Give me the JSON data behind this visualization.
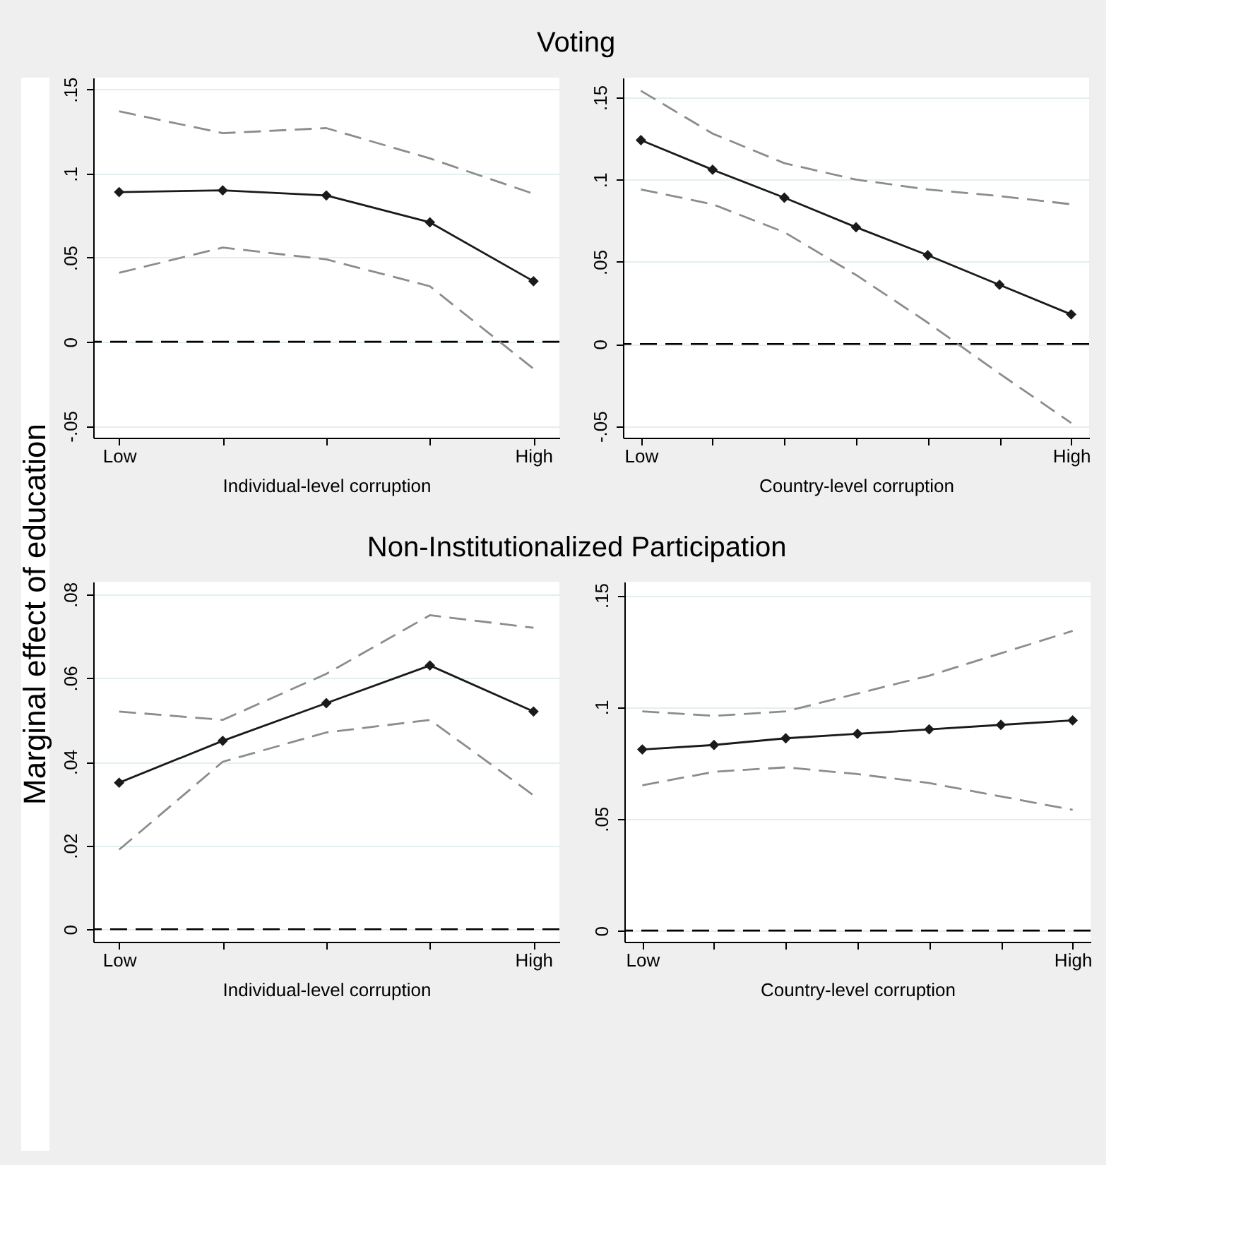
{
  "chart_data": [
    {
      "type": "line",
      "title": "Voting",
      "ylabel": "Marginal effect of education",
      "xlabel": "Individual-level corruption",
      "categories": [
        "Low",
        null,
        null,
        null,
        "High"
      ],
      "series": [
        {
          "color": "#1a1a1a",
          "marker": "diamond",
          "line_style": "solid",
          "values": [
            0.089,
            0.09,
            0.087,
            0.071,
            0.036
          ]
        },
        {
          "color": "#8c8c8c",
          "marker": "none",
          "line_style": "dashed",
          "values": [
            0.137,
            0.124,
            0.127,
            0.109,
            0.088
          ]
        },
        {
          "color": "#8c8c8c",
          "marker": "none",
          "line_style": "dashed",
          "values": [
            0.041,
            0.056,
            0.049,
            0.033,
            -0.016
          ]
        }
      ],
      "ylim": [
        -0.057,
        0.157
      ],
      "yticks": [
        {
          "value": -0.05,
          "label": "-.05"
        },
        0,
        {
          "value": 0.05,
          "label": ".05"
        },
        {
          "value": 0.1,
          "label": ".1"
        },
        {
          "value": 0.15,
          "label": ".15"
        }
      ],
      "grid": "y",
      "ref_lines": [
        {
          "axis": "y",
          "value": 0,
          "color": "#000000",
          "line_style": "dashed"
        }
      ]
    },
    {
      "type": "line",
      "xlabel": "Country-level corruption",
      "categories": [
        "Low",
        null,
        null,
        null,
        null,
        null,
        "High"
      ],
      "series": [
        {
          "color": "#1a1a1a",
          "marker": "diamond",
          "line_style": "solid",
          "values": [
            0.124,
            0.106,
            0.089,
            0.071,
            0.054,
            0.036,
            0.018
          ]
        },
        {
          "color": "#8c8c8c",
          "marker": "none",
          "line_style": "dashed",
          "values": [
            0.154,
            0.128,
            0.11,
            0.1,
            0.094,
            0.09,
            0.085
          ]
        },
        {
          "color": "#8c8c8c",
          "marker": "none",
          "line_style": "dashed",
          "values": [
            0.094,
            0.085,
            0.068,
            0.042,
            0.013,
            -0.018,
            -0.048
          ]
        }
      ],
      "ylim": [
        -0.057,
        0.162
      ],
      "yticks": [
        {
          "value": -0.05,
          "label": "-.05"
        },
        0,
        {
          "value": 0.05,
          "label": ".05"
        },
        {
          "value": 0.1,
          "label": ".1"
        },
        {
          "value": 0.15,
          "label": ".15"
        }
      ],
      "grid": "y",
      "ref_lines": [
        {
          "axis": "y",
          "value": 0,
          "color": "#000000",
          "line_style": "dashed"
        }
      ]
    },
    {
      "type": "line",
      "title": "Non-Institutionalized Participation",
      "xlabel": "Individual-level corruption",
      "categories": [
        "Low",
        null,
        null,
        null,
        "High"
      ],
      "series": [
        {
          "color": "#1a1a1a",
          "marker": "diamond",
          "line_style": "solid",
          "values": [
            0.035,
            0.045,
            0.054,
            0.063,
            0.052
          ]
        },
        {
          "color": "#8c8c8c",
          "marker": "none",
          "line_style": "dashed",
          "values": [
            0.052,
            0.05,
            0.061,
            0.075,
            0.072
          ]
        },
        {
          "color": "#8c8c8c",
          "marker": "none",
          "line_style": "dashed",
          "values": [
            0.019,
            0.04,
            0.047,
            0.05,
            0.032
          ]
        }
      ],
      "ylim": [
        -0.003,
        0.083
      ],
      "yticks": [
        0,
        {
          "value": 0.02,
          "label": ".02"
        },
        {
          "value": 0.04,
          "label": ".04"
        },
        {
          "value": 0.06,
          "label": ".06"
        },
        {
          "value": 0.08,
          "label": ".08"
        }
      ],
      "grid": "y",
      "ref_lines": [
        {
          "axis": "y",
          "value": 0,
          "color": "#000000",
          "line_style": "dashed"
        }
      ]
    },
    {
      "type": "line",
      "xlabel": "Country-level corruption",
      "categories": [
        "Low",
        null,
        null,
        null,
        null,
        null,
        "High"
      ],
      "series": [
        {
          "color": "#1a1a1a",
          "marker": "diamond",
          "line_style": "solid",
          "values": [
            0.081,
            0.083,
            0.086,
            0.088,
            0.09,
            0.092,
            0.094
          ]
        },
        {
          "color": "#8c8c8c",
          "marker": "none",
          "line_style": "dashed",
          "values": [
            0.098,
            0.096,
            0.098,
            0.106,
            0.114,
            0.124,
            0.134
          ]
        },
        {
          "color": "#8c8c8c",
          "marker": "none",
          "line_style": "dashed",
          "values": [
            0.065,
            0.071,
            0.073,
            0.07,
            0.066,
            0.06,
            0.054
          ]
        }
      ],
      "ylim": [
        -0.005,
        0.156
      ],
      "yticks": [
        0,
        {
          "value": 0.05,
          "label": ".05"
        },
        {
          "value": 0.1,
          "label": ".1"
        },
        {
          "value": 0.15,
          "label": ".15"
        }
      ],
      "grid": "y",
      "ref_lines": [
        {
          "axis": "y",
          "value": 0,
          "color": "#000000",
          "line_style": "dashed"
        }
      ]
    }
  ]
}
